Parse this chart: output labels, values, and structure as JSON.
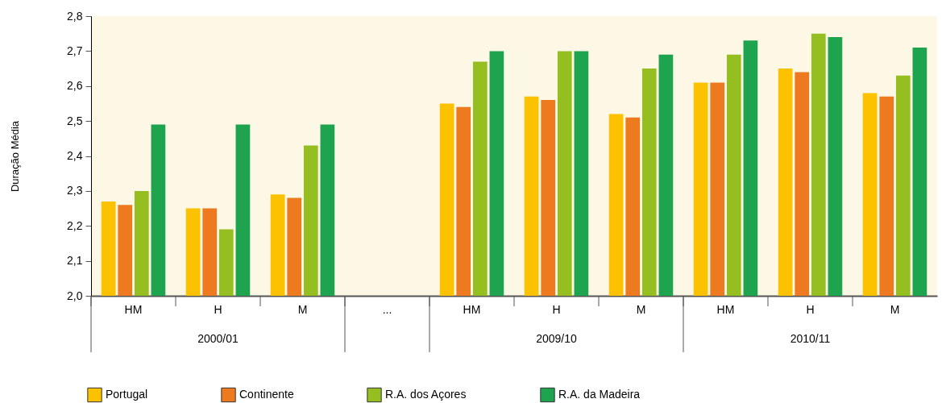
{
  "chart_data": {
    "type": "bar",
    "ylabel": "Duração Média",
    "categories": [
      "HM",
      "H",
      "M",
      "...",
      "HM",
      "H",
      "M",
      "HM",
      "H",
      "M"
    ],
    "series": [
      {
        "name": "Portugal",
        "color": "#fcc200",
        "values": [
          2.27,
          2.25,
          2.29,
          null,
          2.55,
          2.57,
          2.52,
          2.61,
          2.65,
          2.58
        ]
      },
      {
        "name": "Continente",
        "color": "#ee7a1f",
        "values": [
          2.26,
          2.25,
          2.28,
          null,
          2.54,
          2.56,
          2.51,
          2.61,
          2.64,
          2.57
        ]
      },
      {
        "name": "R.A. dos Açores",
        "color": "#95bf20",
        "values": [
          2.3,
          2.19,
          2.43,
          null,
          2.67,
          2.7,
          2.65,
          2.69,
          2.75,
          2.63
        ]
      },
      {
        "name": "R.A. da Madeira",
        "color": "#1ea34f",
        "values": [
          2.49,
          2.49,
          2.49,
          null,
          2.7,
          2.7,
          2.69,
          2.73,
          2.74,
          2.71
        ]
      }
    ],
    "ylim": [
      2.0,
      2.8
    ],
    "yticks": [
      {
        "value": 2.0,
        "label": "2,0"
      },
      {
        "value": 2.1,
        "label": "2,1"
      },
      {
        "value": 2.2,
        "label": "2,2"
      },
      {
        "value": 2.3,
        "label": "2,3"
      },
      {
        "value": 2.4,
        "label": "2,4"
      },
      {
        "value": 2.5,
        "label": "2,5"
      },
      {
        "value": 2.6,
        "label": "2,6"
      },
      {
        "value": 2.7,
        "label": "2,7"
      },
      {
        "value": 2.8,
        "label": "2,8"
      }
    ],
    "annotations": [
      "2000/01",
      "2009/10",
      "2010/11"
    ],
    "grid": false,
    "legend": "bottom"
  }
}
